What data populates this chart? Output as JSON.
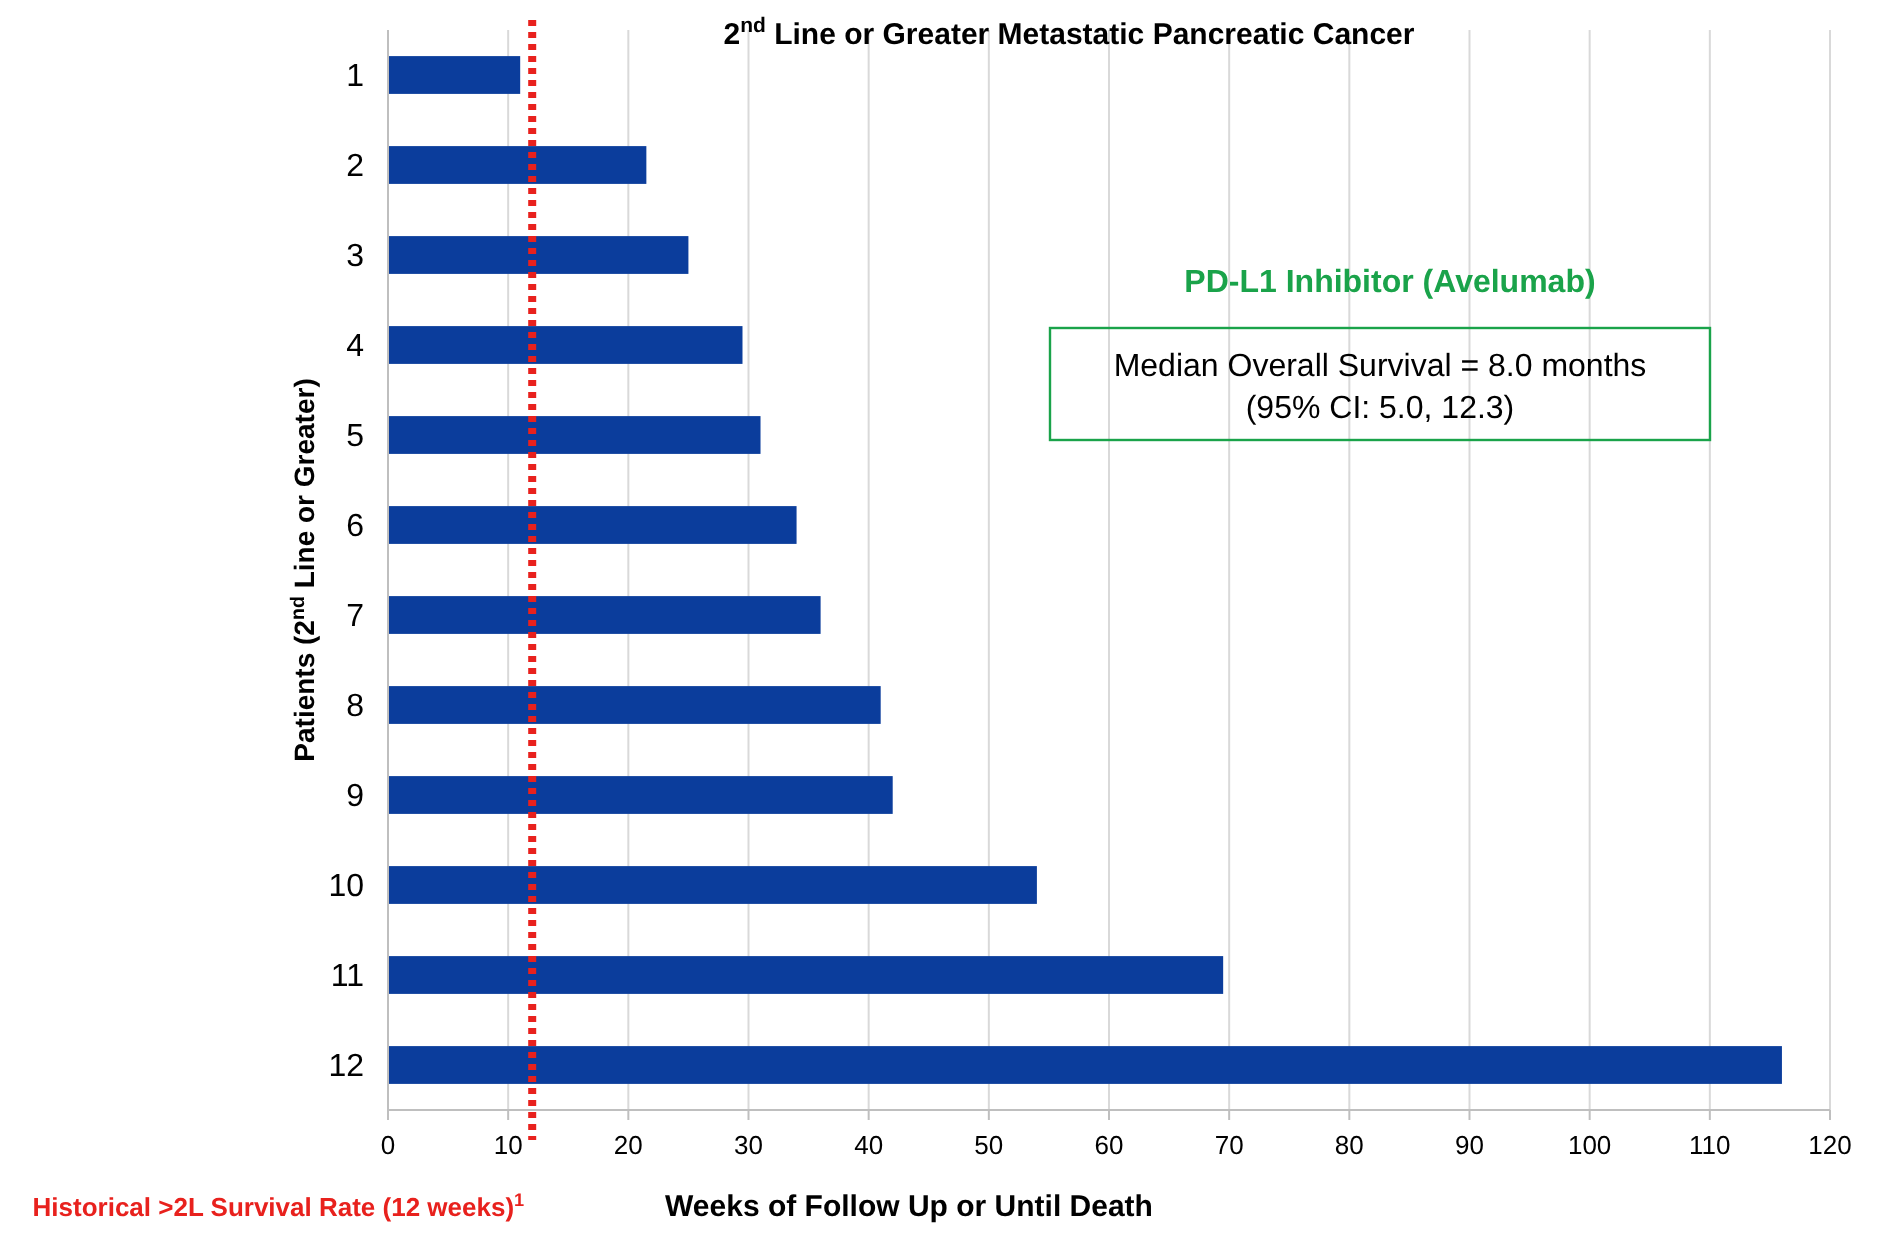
{
  "chart_data": {
    "type": "bar",
    "orientation": "horizontal",
    "title": "2$^{nd}$ Line or Greater Metastatic Pancreatic Cancer",
    "xlabel": "Weeks of Follow Up or Until Death",
    "ylabel": "Patients (2$^{nd}$ Line or Greater)",
    "categories": [
      "1",
      "2",
      "3",
      "4",
      "5",
      "6",
      "7",
      "8",
      "9",
      "10",
      "11",
      "12"
    ],
    "values": [
      11,
      21.5,
      25,
      29.5,
      31,
      34,
      36,
      41,
      42,
      54,
      69.5,
      116
    ],
    "color": "#0b3d9c",
    "xlim": [
      0,
      120
    ],
    "xticks": [
      0,
      10,
      20,
      30,
      40,
      50,
      60,
      70,
      80,
      90,
      100,
      110,
      120
    ],
    "grid": "x",
    "ref_lines": [
      {
        "axis": "x",
        "value": 12,
        "label": "Historical >2L Survival Rate (12 weeks)$^{1}$",
        "color": "#e8211d",
        "line_style": "dotted"
      }
    ],
    "annotations": [
      "PD-L1 Inhibitor (Avelumab)",
      "Median Overall Survival = 8.0 months",
      "(95% CI: 5.0, 12.3)"
    ]
  }
}
